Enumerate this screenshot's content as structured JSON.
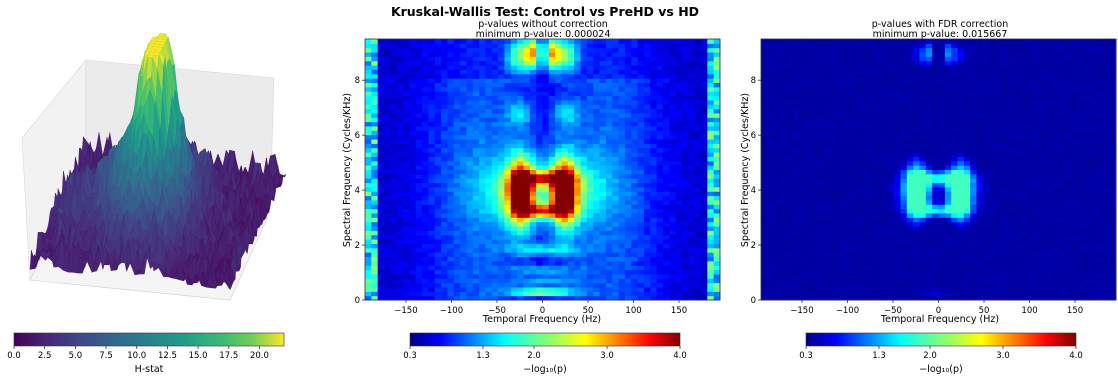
{
  "suptitle": "Kruskal-Wallis Test: Control vs PreHD vs HD",
  "chart_data": [
    {
      "type": "surface",
      "colorbar": {
        "label": "H-stat",
        "colormap": "viridis",
        "range": [
          0.0,
          22.0
        ],
        "ticks": [
          "0.0",
          "2.5",
          "5.0",
          "7.5",
          "10.0",
          "12.5",
          "15.0",
          "17.5",
          "20.0"
        ]
      },
      "peak_region": "center"
    },
    {
      "type": "heatmap",
      "title": "p-values without correction",
      "subtitle": "minimum p-value: 0.000024",
      "xlabel": "Temporal Frequency (Hz)",
      "ylabel": "Spectral Frequency (Cycles/KHz)",
      "xlim": [
        -195,
        195
      ],
      "ylim": [
        0,
        9.5
      ],
      "xticks": [
        "−150",
        "−100",
        "−50",
        "0",
        "50",
        "100",
        "150"
      ],
      "yticks": [
        "0",
        "2",
        "4",
        "6",
        "8"
      ],
      "colormap": "jet",
      "colorbar": {
        "label": "−log₁₀(p)",
        "range": [
          0.3,
          4.0
        ],
        "ticks": [
          "0.3",
          "1.3",
          "2.0",
          "3.0",
          "4.0"
        ]
      }
    },
    {
      "type": "heatmap",
      "title": "p-values with FDR correction",
      "subtitle": "minimum p-value: 0.015667",
      "xlabel": "Temporal Frequency (Hz)",
      "ylabel": "Spectral Frequency (Cycles/KHz)",
      "xlim": [
        -195,
        195
      ],
      "ylim": [
        0,
        9.5
      ],
      "xticks": [
        "−150",
        "−100",
        "−50",
        "0",
        "50",
        "100",
        "150"
      ],
      "yticks": [
        "0",
        "2",
        "4",
        "6",
        "8"
      ],
      "colormap": "jet",
      "colorbar": {
        "label": "−log₁₀(p)",
        "range": [
          0.3,
          4.0
        ],
        "ticks": [
          "0.3",
          "1.3",
          "2.0",
          "3.0",
          "4.0"
        ]
      }
    }
  ]
}
